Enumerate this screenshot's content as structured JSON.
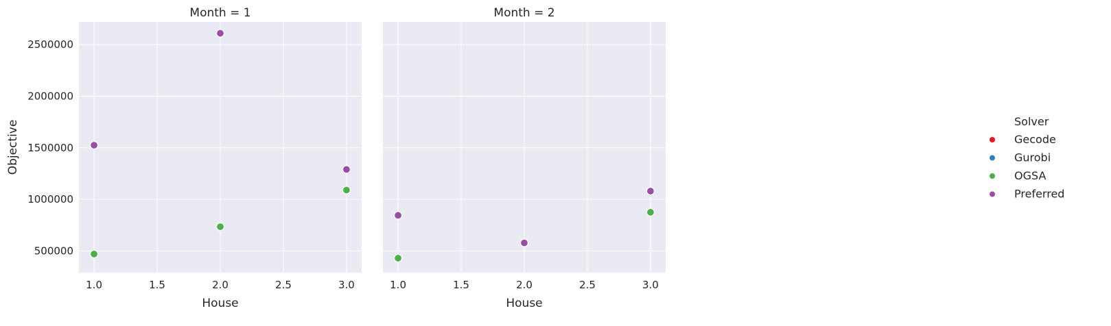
{
  "colors": {
    "background": "#eaeaf2",
    "grid": "#ffffff",
    "Gecode": "#e41a1c",
    "Gurobi": "#377eb8",
    "OGSA": "#4daf4a",
    "Preferred": "#984ea3"
  },
  "chart_data": {
    "type": "scatter",
    "ylabel": "Objective",
    "legend": {
      "title": "Solver",
      "placement": "right",
      "entries": [
        "Gecode",
        "Gurobi",
        "OGSA",
        "Preferred"
      ]
    },
    "panels": [
      {
        "title": "Month = 1",
        "xlabel": "House",
        "xlim": [
          0.88,
          3.12
        ],
        "ylim": [
          290000,
          2720000
        ],
        "xticks": [
          1.0,
          1.5,
          2.0,
          2.5,
          3.0
        ],
        "xtick_labels": [
          "1.0",
          "1.5",
          "2.0",
          "2.5",
          "3.0"
        ],
        "yticks": [
          500000,
          1000000,
          1500000,
          2000000,
          2500000
        ],
        "ytick_labels": [
          "500000",
          "1000000",
          "1500000",
          "2000000",
          "2500000"
        ],
        "series": [
          {
            "name": "OGSA",
            "points": [
              [
                1,
                470000
              ],
              [
                2,
                735000
              ],
              [
                3,
                1090000
              ]
            ]
          },
          {
            "name": "Preferred",
            "points": [
              [
                1,
                1525000
              ],
              [
                2,
                2610000
              ],
              [
                3,
                1290000
              ]
            ]
          }
        ]
      },
      {
        "title": "Month = 2",
        "xlabel": "House",
        "xlim": [
          0.88,
          3.12
        ],
        "ylim": [
          290000,
          2720000
        ],
        "xticks": [
          1.0,
          1.5,
          2.0,
          2.5,
          3.0
        ],
        "xtick_labels": [
          "1.0",
          "1.5",
          "2.0",
          "2.5",
          "3.0"
        ],
        "yticks": [
          500000,
          1000000,
          1500000,
          2000000,
          2500000
        ],
        "ytick_labels": [],
        "series": [
          {
            "name": "OGSA",
            "points": [
              [
                1,
                430000
              ],
              [
                2,
                580000
              ],
              [
                3,
                875000
              ]
            ]
          },
          {
            "name": "Preferred",
            "points": [
              [
                1,
                845000
              ],
              [
                2,
                578000
              ],
              [
                3,
                1080000
              ]
            ]
          }
        ]
      }
    ]
  }
}
